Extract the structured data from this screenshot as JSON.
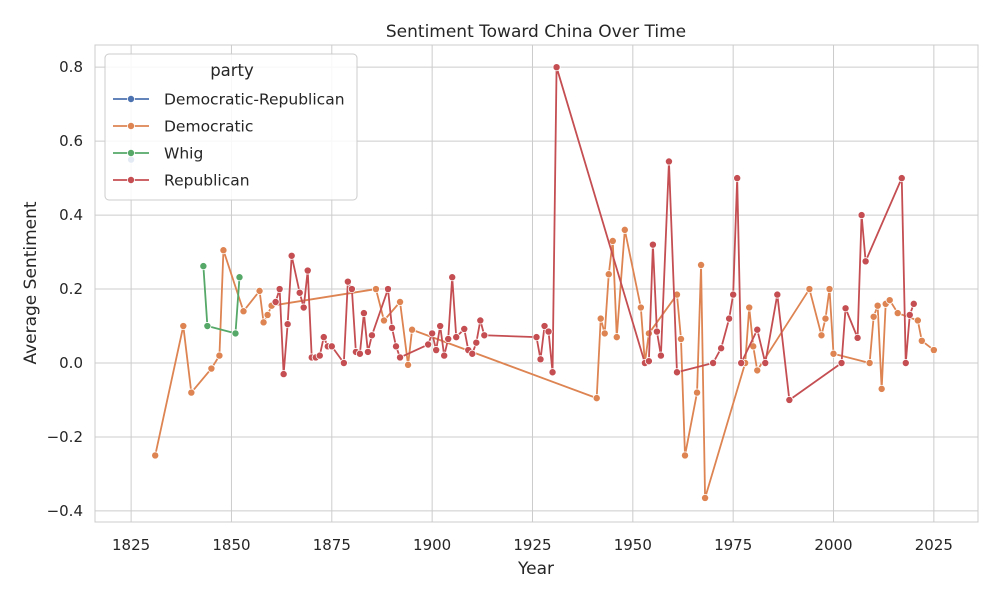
{
  "chart_data": {
    "type": "line",
    "title": "Sentiment Toward China Over Time",
    "xlabel": "Year",
    "ylabel": "Average Sentiment",
    "xlim": [
      1816,
      2036
    ],
    "ylim": [
      -0.43,
      0.86
    ],
    "xticks": [
      1825,
      1850,
      1875,
      1900,
      1925,
      1950,
      1975,
      2000,
      2025
    ],
    "xtick_labels": [
      "1825",
      "1850",
      "1875",
      "1900",
      "1925",
      "1950",
      "1975",
      "2000",
      "2025"
    ],
    "yticks": [
      -0.4,
      -0.2,
      0.0,
      0.2,
      0.4,
      0.6,
      0.8
    ],
    "ytick_labels": [
      "−0.4",
      "−0.2",
      "0.0",
      "0.2",
      "0.4",
      "0.6",
      "0.8"
    ],
    "grid": true,
    "legend": {
      "title": "party",
      "placement": "top-left"
    },
    "series": [
      {
        "name": "Democratic-Republican",
        "color": "#4c72b0",
        "points": [
          [
            1825,
            0.55
          ]
        ]
      },
      {
        "name": "Democratic",
        "color": "#dd8452",
        "points": [
          [
            1831,
            -0.25
          ],
          [
            1838,
            0.1
          ],
          [
            1840,
            -0.08
          ],
          [
            1845,
            -0.015
          ],
          [
            1847,
            0.02
          ],
          [
            1848,
            0.305
          ],
          [
            1853,
            0.14
          ],
          [
            1857,
            0.195
          ],
          [
            1858,
            0.11
          ],
          [
            1859,
            0.13
          ],
          [
            1860,
            0.155
          ],
          [
            1886,
            0.2
          ],
          [
            1888,
            0.115
          ],
          [
            1892,
            0.165
          ],
          [
            1894,
            -0.005
          ],
          [
            1895,
            0.09
          ],
          [
            1941,
            -0.095
          ],
          [
            1942,
            0.12
          ],
          [
            1943,
            0.08
          ],
          [
            1944,
            0.24
          ],
          [
            1945,
            0.33
          ],
          [
            1946,
            0.07
          ],
          [
            1948,
            0.36
          ],
          [
            1952,
            0.15
          ],
          [
            1953,
            0.0
          ],
          [
            1954,
            0.08
          ],
          [
            1961,
            0.185
          ],
          [
            1962,
            0.065
          ],
          [
            1963,
            -0.25
          ],
          [
            1966,
            -0.08
          ],
          [
            1967,
            0.265
          ],
          [
            1968,
            -0.365
          ],
          [
            1978,
            0.0
          ],
          [
            1979,
            0.15
          ],
          [
            1980,
            0.045
          ],
          [
            1981,
            -0.02
          ],
          [
            1994,
            0.2
          ],
          [
            1997,
            0.075
          ],
          [
            1998,
            0.12
          ],
          [
            1999,
            0.2
          ],
          [
            2000,
            0.025
          ],
          [
            2009,
            0.0
          ],
          [
            2010,
            0.125
          ],
          [
            2011,
            0.155
          ],
          [
            2012,
            -0.07
          ],
          [
            2013,
            0.16
          ],
          [
            2014,
            0.17
          ],
          [
            2016,
            0.135
          ],
          [
            2021,
            0.115
          ],
          [
            2022,
            0.06
          ],
          [
            2025,
            0.035
          ]
        ]
      },
      {
        "name": "Whig",
        "color": "#55a868",
        "points": [
          [
            1843,
            0.262
          ],
          [
            1844,
            0.1
          ],
          [
            1851,
            0.08
          ],
          [
            1852,
            0.232
          ]
        ]
      },
      {
        "name": "Republican",
        "color": "#c44e52",
        "points": [
          [
            1861,
            0.165
          ],
          [
            1862,
            0.2
          ],
          [
            1863,
            -0.03
          ],
          [
            1864,
            0.105
          ],
          [
            1865,
            0.29
          ],
          [
            1867,
            0.19
          ],
          [
            1868,
            0.15
          ],
          [
            1869,
            0.25
          ],
          [
            1870,
            0.015
          ],
          [
            1871,
            0.015
          ],
          [
            1872,
            0.02
          ],
          [
            1873,
            0.07
          ],
          [
            1874,
            0.045
          ],
          [
            1875,
            0.045
          ],
          [
            1878,
            0.0
          ],
          [
            1879,
            0.22
          ],
          [
            1880,
            0.2
          ],
          [
            1881,
            0.03
          ],
          [
            1882,
            0.025
          ],
          [
            1883,
            0.135
          ],
          [
            1884,
            0.03
          ],
          [
            1885,
            0.075
          ],
          [
            1889,
            0.2
          ],
          [
            1890,
            0.095
          ],
          [
            1891,
            0.045
          ],
          [
            1892,
            0.015
          ],
          [
            1899,
            0.05
          ],
          [
            1900,
            0.08
          ],
          [
            1901,
            0.035
          ],
          [
            1902,
            0.1
          ],
          [
            1903,
            0.02
          ],
          [
            1904,
            0.065
          ],
          [
            1905,
            0.232
          ],
          [
            1906,
            0.07
          ],
          [
            1908,
            0.092
          ],
          [
            1909,
            0.035
          ],
          [
            1910,
            0.025
          ],
          [
            1911,
            0.055
          ],
          [
            1912,
            0.115
          ],
          [
            1913,
            0.075
          ],
          [
            1926,
            0.07
          ],
          [
            1927,
            0.01
          ],
          [
            1928,
            0.1
          ],
          [
            1929,
            0.085
          ],
          [
            1930,
            -0.025
          ],
          [
            1931,
            0.8
          ],
          [
            1953,
            0.0
          ],
          [
            1954,
            0.005
          ],
          [
            1955,
            0.32
          ],
          [
            1956,
            0.085
          ],
          [
            1957,
            0.02
          ],
          [
            1959,
            0.545
          ],
          [
            1961,
            -0.025
          ],
          [
            1970,
            0.0
          ],
          [
            1972,
            0.04
          ],
          [
            1974,
            0.12
          ],
          [
            1975,
            0.185
          ],
          [
            1976,
            0.5
          ],
          [
            1977,
            0.0
          ],
          [
            1981,
            0.09
          ],
          [
            1983,
            0.0
          ],
          [
            1986,
            0.185
          ],
          [
            1989,
            -0.1
          ],
          [
            2002,
            0.0
          ],
          [
            2003,
            0.148
          ],
          [
            2006,
            0.068
          ],
          [
            2007,
            0.4
          ],
          [
            2008,
            0.275
          ],
          [
            2017,
            0.5
          ],
          [
            2018,
            0.0
          ],
          [
            2019,
            0.13
          ],
          [
            2020,
            0.16
          ]
        ]
      }
    ]
  }
}
